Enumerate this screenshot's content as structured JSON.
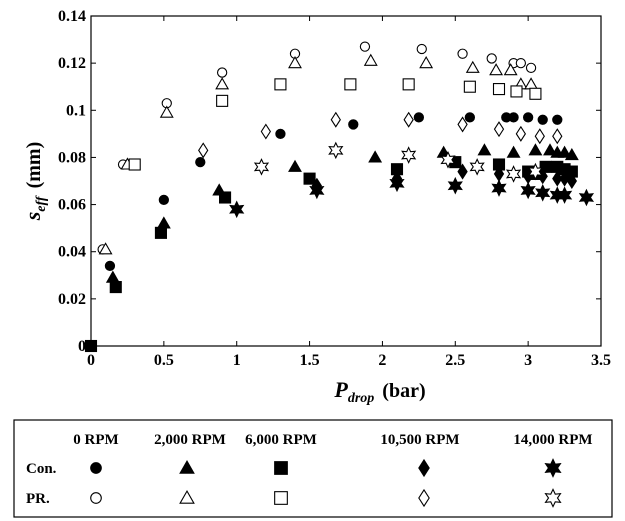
{
  "chart_data": {
    "type": "scatter",
    "xlabel": {
      "main": "P",
      "sub": "drop",
      "unit": "(bar)"
    },
    "ylabel": {
      "main": "s",
      "sub": "eff",
      "unit": "(mm)"
    },
    "xlim": [
      0,
      3.5
    ],
    "ylim": [
      0,
      0.14
    ],
    "xticks": [
      "0",
      "0.5",
      "1",
      "1.5",
      "2",
      "2.5",
      "3",
      "3.5"
    ],
    "yticks": [
      "0",
      "0.02",
      "0.04",
      "0.06",
      "0.08",
      "0.1",
      "0.12",
      "0.14"
    ],
    "grid": false,
    "legend": {
      "placement": "bottom",
      "columns": [
        "0 RPM",
        "2,000 RPM",
        "6,000 RPM",
        "10,500 RPM",
        "14,000 RPM"
      ],
      "rows": [
        "Con.",
        "PR."
      ]
    },
    "series": [
      {
        "name": "Con. 0 RPM",
        "marker": "circle",
        "filled": true,
        "x": [
          0.13,
          0.5,
          0.75,
          1.3,
          1.8,
          2.25,
          2.6,
          2.85,
          2.9,
          3.0,
          3.1,
          3.2
        ],
        "y": [
          0.034,
          0.062,
          0.078,
          0.09,
          0.094,
          0.097,
          0.097,
          0.097,
          0.097,
          0.097,
          0.096,
          0.096
        ]
      },
      {
        "name": "Con. 2,000 RPM",
        "marker": "triangle",
        "filled": true,
        "x": [
          0.15,
          0.5,
          0.88,
          1.4,
          1.95,
          2.42,
          2.7,
          2.9,
          3.05,
          3.15,
          3.2,
          3.25,
          3.3
        ],
        "y": [
          0.029,
          0.052,
          0.066,
          0.076,
          0.08,
          0.082,
          0.083,
          0.082,
          0.083,
          0.083,
          0.082,
          0.082,
          0.081
        ]
      },
      {
        "name": "Con. 6,000 RPM",
        "marker": "square",
        "filled": true,
        "x": [
          0.0,
          0.17,
          0.48,
          0.92,
          1.5,
          2.1,
          2.5,
          2.8,
          3.0,
          3.05,
          3.12,
          3.2,
          3.25,
          3.3
        ],
        "y": [
          0.0,
          0.025,
          0.048,
          0.063,
          0.071,
          0.075,
          0.078,
          0.077,
          0.074,
          0.073,
          0.076,
          0.076,
          0.075,
          0.074
        ]
      },
      {
        "name": "Con. 10,500 RPM",
        "marker": "diamond",
        "filled": true,
        "x": [
          1.55,
          2.1,
          2.55,
          2.8,
          3.0,
          3.1,
          3.2,
          3.25,
          3.3
        ],
        "y": [
          0.068,
          0.071,
          0.074,
          0.073,
          0.072,
          0.072,
          0.071,
          0.071,
          0.07
        ]
      },
      {
        "name": "Con. 14,000 RPM",
        "marker": "star",
        "filled": true,
        "x": [
          1.0,
          1.55,
          2.1,
          2.5,
          2.8,
          3.0,
          3.1,
          3.2,
          3.25,
          3.4
        ],
        "y": [
          0.058,
          0.066,
          0.069,
          0.068,
          0.067,
          0.066,
          0.065,
          0.064,
          0.064,
          0.063
        ]
      },
      {
        "name": "PR. 0 RPM",
        "marker": "circle",
        "filled": false,
        "x": [
          0.08,
          0.22,
          0.52,
          0.9,
          1.4,
          1.88,
          2.27,
          2.55,
          2.75,
          2.9,
          2.95,
          3.02
        ],
        "y": [
          0.041,
          0.077,
          0.103,
          0.116,
          0.124,
          0.127,
          0.126,
          0.124,
          0.122,
          0.12,
          0.12,
          0.118
        ]
      },
      {
        "name": "PR. 2,000 RPM",
        "marker": "triangle",
        "filled": false,
        "x": [
          0.1,
          0.25,
          0.52,
          0.9,
          1.4,
          1.92,
          2.3,
          2.62,
          2.78,
          2.88,
          2.95,
          3.02
        ],
        "y": [
          0.041,
          0.077,
          0.099,
          0.111,
          0.12,
          0.121,
          0.12,
          0.118,
          0.117,
          0.117,
          0.111,
          0.111
        ]
      },
      {
        "name": "PR. 6,000 RPM",
        "marker": "square",
        "filled": false,
        "x": [
          0.3,
          0.9,
          1.3,
          1.78,
          2.18,
          2.6,
          2.8,
          2.92,
          3.05
        ],
        "y": [
          0.077,
          0.104,
          0.111,
          0.111,
          0.111,
          0.11,
          0.109,
          0.108,
          0.107
        ]
      },
      {
        "name": "PR. 10,500 RPM",
        "marker": "diamond",
        "filled": false,
        "x": [
          0.77,
          1.2,
          1.68,
          2.18,
          2.55,
          2.8,
          2.95,
          3.08,
          3.2
        ],
        "y": [
          0.083,
          0.091,
          0.096,
          0.096,
          0.094,
          0.092,
          0.09,
          0.089,
          0.089
        ]
      },
      {
        "name": "PR. 14,000 RPM",
        "marker": "star",
        "filled": false,
        "x": [
          1.17,
          1.68,
          2.18,
          2.45,
          2.65,
          2.9,
          3.05
        ],
        "y": [
          0.076,
          0.083,
          0.081,
          0.079,
          0.076,
          0.073,
          0.074
        ]
      }
    ]
  }
}
